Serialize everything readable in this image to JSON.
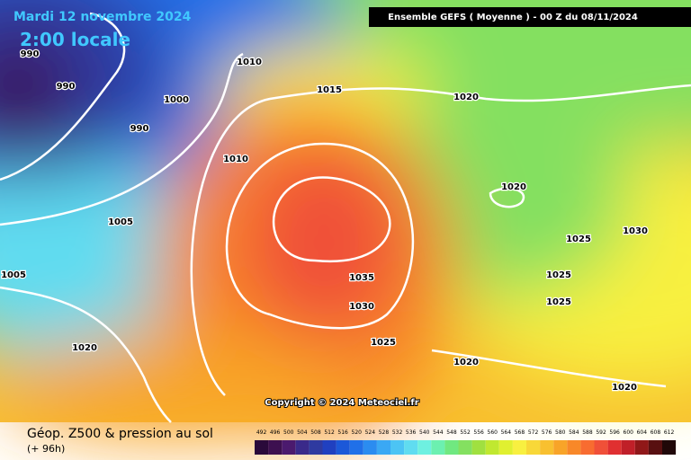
{
  "header": {
    "date": "Mardi 12 novembre 2024",
    "time": "2:00 locale",
    "model": "Ensemble GEFS  ( Moyenne )  - 00 Z du 08/11/2024"
  },
  "isobar_labels": [
    990,
    990,
    1000,
    990,
    1010,
    1015,
    1020,
    1010,
    1005,
    1020,
    1025,
    1030,
    1035,
    1030,
    1025,
    1025,
    1025,
    1020,
    1020,
    1005,
    1020
  ],
  "copyright": "Copyright © 2024 Meteociel.fr",
  "footer": {
    "title": "Géop. Z500 & pression au sol",
    "lead": "(+ 96h)"
  },
  "colorbar": [
    {
      "value": 492,
      "color": "#2a0a3a"
    },
    {
      "value": 496,
      "color": "#3d1050"
    },
    {
      "value": 500,
      "color": "#4b1a6e"
    },
    {
      "value": 504,
      "color": "#3a2a8a"
    },
    {
      "value": 508,
      "color": "#2f3aa0"
    },
    {
      "value": 512,
      "color": "#2040c0"
    },
    {
      "value": 516,
      "color": "#1c58d8"
    },
    {
      "value": 520,
      "color": "#2070e8"
    },
    {
      "value": 524,
      "color": "#2b8cf0"
    },
    {
      "value": 528,
      "color": "#3aa8f4"
    },
    {
      "value": 532,
      "color": "#4cc4f4"
    },
    {
      "value": 536,
      "color": "#60dcf0"
    },
    {
      "value": 540,
      "color": "#6ef0e0"
    },
    {
      "value": 544,
      "color": "#6cf0b0"
    },
    {
      "value": 548,
      "color": "#70e880"
    },
    {
      "value": 552,
      "color": "#84e060"
    },
    {
      "value": 556,
      "color": "#a0e040"
    },
    {
      "value": 560,
      "color": "#c0e830"
    },
    {
      "value": 564,
      "color": "#e0f030"
    },
    {
      "value": 568,
      "color": "#f8f040"
    },
    {
      "value": 572,
      "color": "#f8d838"
    },
    {
      "value": 576,
      "color": "#f8c030"
    },
    {
      "value": 580,
      "color": "#f8a428"
    },
    {
      "value": 584,
      "color": "#f88828"
    },
    {
      "value": 588,
      "color": "#f86c30"
    },
    {
      "value": 592,
      "color": "#f05038"
    },
    {
      "value": 596,
      "color": "#e03030"
    },
    {
      "value": 600,
      "color": "#c02028"
    },
    {
      "value": 604,
      "color": "#901818"
    },
    {
      "value": 608,
      "color": "#581010"
    },
    {
      "value": 612,
      "color": "#200808"
    }
  ]
}
